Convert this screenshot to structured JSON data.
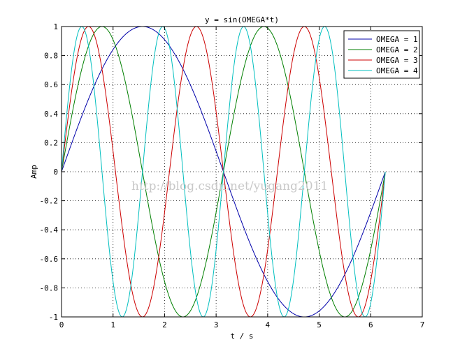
{
  "chart_data": {
    "type": "line",
    "title": "y = sin(OMEGA*t)",
    "xlabel": "t / s",
    "ylabel": "Amp",
    "xlim": [
      0,
      7
    ],
    "ylim": [
      -1,
      1
    ],
    "grid": true,
    "legend_position": "top-right",
    "x_ticks": [
      "0",
      "1",
      "2",
      "3",
      "4",
      "5",
      "6",
      "7"
    ],
    "y_ticks": [
      "-1",
      "-0.8",
      "-0.6",
      "-0.4",
      "-0.2",
      "0",
      "0.2",
      "0.4",
      "0.6",
      "0.8",
      "1"
    ],
    "x_domain": [
      0,
      6.2832
    ],
    "function": "sin",
    "series": [
      {
        "name": "OMEGA = 1",
        "omega": 1,
        "color": "#0000aa"
      },
      {
        "name": "OMEGA = 2",
        "omega": 2,
        "color": "#007f00"
      },
      {
        "name": "OMEGA = 3",
        "omega": 3,
        "color": "#cc0000"
      },
      {
        "name": "OMEGA = 4",
        "omega": 4,
        "color": "#00bfbf"
      }
    ]
  },
  "watermark": "http://blog.csdn.net/yugang2011"
}
